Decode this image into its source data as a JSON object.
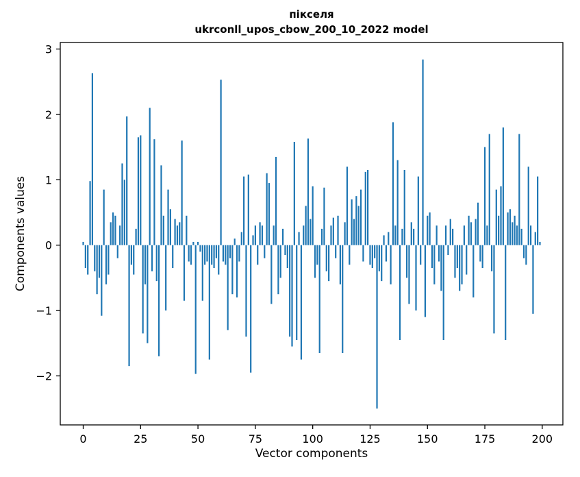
{
  "page": {
    "background": "#ffffff"
  },
  "chart_data": {
    "type": "bar",
    "title": "пікселя",
    "subtitle": "ukrconll_upos_cbow_200_10_2022 model",
    "xlabel": "Vector components",
    "ylabel": "Components values",
    "bar_color": "#1f77b4",
    "axis_color": "#000000",
    "grid": false,
    "legend": "none",
    "xlim": [
      -10,
      209
    ],
    "ylim": [
      -2.75,
      3.1
    ],
    "xticks": [
      0,
      25,
      50,
      75,
      100,
      125,
      150,
      175,
      200
    ],
    "xtick_labels": [
      "0",
      "25",
      "50",
      "75",
      "100",
      "125",
      "150",
      "175",
      "200"
    ],
    "yticks": [
      -2,
      -1,
      0,
      1,
      2,
      3
    ],
    "ytick_labels": [
      "−2",
      "−1",
      "0",
      "1",
      "2",
      "3"
    ],
    "values": [
      0.05,
      -0.35,
      -0.45,
      0.98,
      2.63,
      -0.4,
      -0.75,
      -0.5,
      -1.08,
      0.85,
      -0.6,
      -0.45,
      0.35,
      0.5,
      0.45,
      -0.2,
      0.3,
      1.25,
      1.0,
      1.97,
      -1.85,
      -0.3,
      -0.45,
      0.25,
      1.65,
      1.68,
      -1.35,
      -0.6,
      -1.5,
      2.1,
      -0.4,
      1.62,
      -0.55,
      -1.7,
      1.22,
      0.45,
      -1.0,
      0.85,
      0.55,
      -0.35,
      0.4,
      0.3,
      0.35,
      1.6,
      -0.85,
      0.45,
      -0.25,
      -0.3,
      0.05,
      -1.97,
      0.05,
      -0.1,
      -0.85,
      -0.3,
      -0.25,
      -1.75,
      -0.3,
      -0.35,
      -0.2,
      -0.45,
      2.53,
      -0.25,
      -0.3,
      -1.3,
      -0.2,
      -0.75,
      0.1,
      -0.8,
      -0.25,
      0.2,
      1.05,
      -1.4,
      1.08,
      -1.95,
      0.15,
      0.3,
      -0.3,
      0.35,
      0.3,
      -0.2,
      1.1,
      0.95,
      -0.9,
      0.3,
      1.35,
      -0.75,
      -0.5,
      0.25,
      -0.15,
      -0.35,
      -1.4,
      -1.55,
      1.58,
      -1.45,
      0.2,
      -1.75,
      0.3,
      0.6,
      1.63,
      0.4,
      0.9,
      -0.5,
      -0.3,
      -1.65,
      0.25,
      0.88,
      -0.4,
      -0.55,
      0.3,
      0.42,
      -0.2,
      0.45,
      -0.6,
      -1.65,
      0.35,
      1.2,
      -0.3,
      0.7,
      0.4,
      0.75,
      0.6,
      0.85,
      -0.25,
      1.12,
      1.15,
      -0.3,
      -0.35,
      -0.2,
      -2.5,
      -0.4,
      -0.55,
      0.15,
      -0.25,
      0.2,
      -0.6,
      1.88,
      0.3,
      1.3,
      -1.45,
      0.25,
      1.15,
      -0.5,
      -0.9,
      0.35,
      0.25,
      -1.0,
      1.05,
      -0.3,
      2.84,
      -1.1,
      0.45,
      0.5,
      -0.35,
      -0.6,
      0.3,
      -0.25,
      -0.7,
      -1.45,
      0.3,
      -0.15,
      0.4,
      0.25,
      -0.5,
      -0.35,
      -0.7,
      -0.6,
      0.3,
      -0.45,
      0.45,
      0.35,
      -0.8,
      0.4,
      0.65,
      -0.25,
      -0.35,
      1.5,
      0.3,
      1.7,
      -0.4,
      -1.35,
      0.85,
      0.45,
      0.9,
      1.8,
      -1.45,
      0.5,
      0.55,
      0.35,
      0.45,
      0.3,
      1.7,
      0.25,
      -0.2,
      -0.3,
      1.2,
      0.3,
      -1.05,
      0.2,
      1.05,
      0.05
    ]
  }
}
